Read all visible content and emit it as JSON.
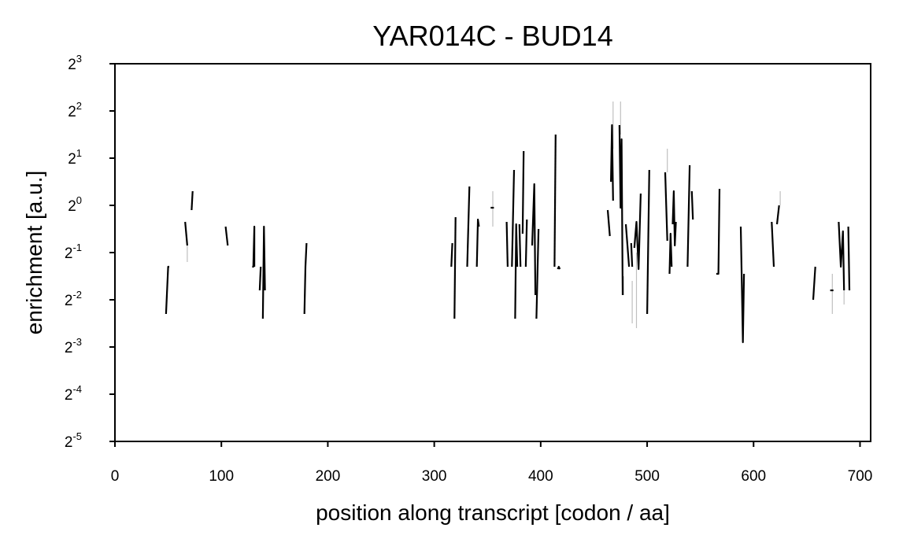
{
  "chart_data": {
    "type": "line",
    "title": "YAR014C - BUD14",
    "xlabel": "position along transcript [codon / aa]",
    "ylabel": "enrichment [a.u.]",
    "xlim": [
      0,
      710
    ],
    "ylim_log2": [
      -5,
      3
    ],
    "y_scale": "log2",
    "x_ticks": [
      {
        "value": 0,
        "label": "0"
      },
      {
        "value": 100,
        "label": "100"
      },
      {
        "value": 200,
        "label": "200"
      },
      {
        "value": 300,
        "label": "300"
      },
      {
        "value": 400,
        "label": "400"
      },
      {
        "value": 500,
        "label": "500"
      },
      {
        "value": 600,
        "label": "600"
      },
      {
        "value": 700,
        "label": "700"
      }
    ],
    "y_ticks": [
      {
        "exp": 3,
        "base": "2",
        "sup": "3"
      },
      {
        "exp": 2,
        "base": "2",
        "sup": "2"
      },
      {
        "exp": 1,
        "base": "2",
        "sup": "1"
      },
      {
        "exp": 0,
        "base": "2",
        "sup": "0"
      },
      {
        "exp": -1,
        "base": "2",
        "sup": "-1"
      },
      {
        "exp": -2,
        "base": "2",
        "sup": "-2"
      },
      {
        "exp": -3,
        "base": "2",
        "sup": "-3"
      },
      {
        "exp": -4,
        "base": "2",
        "sup": "-4"
      },
      {
        "exp": -5,
        "base": "2",
        "sup": "-5"
      }
    ],
    "grid": false,
    "series": [
      {
        "color": "#000000",
        "segments": [
          [
            [
              48,
              -2.3
            ],
            [
              50,
              -1.3
            ],
            [
              51,
              -1.3
            ]
          ],
          [
            [
              66,
              -0.35
            ],
            [
              68,
              -0.85
            ]
          ],
          [
            [
              72,
              -0.1
            ],
            [
              73,
              0.3
            ]
          ],
          [
            [
              104,
              -0.45
            ],
            [
              106,
              -0.85
            ]
          ],
          [
            [
              129,
              -1.3
            ],
            [
              130,
              -1.3
            ],
            [
              131,
              -0.45
            ],
            [
              131,
              -1.3
            ]
          ],
          [
            [
              136,
              -1.8
            ],
            [
              137,
              -1.3
            ]
          ],
          [
            [
              139,
              -2.4
            ],
            [
              140,
              -0.45
            ],
            [
              141,
              -1.8
            ]
          ],
          [
            [
              178,
              -2.3
            ],
            [
              179,
              -1.3
            ],
            [
              180,
              -0.8
            ]
          ],
          [
            [
              316,
              -1.3
            ],
            [
              317,
              -0.8
            ]
          ],
          [
            [
              319,
              -2.4
            ],
            [
              320,
              -0.25
            ]
          ],
          [
            [
              331,
              -1.3
            ],
            [
              333,
              0.4
            ]
          ],
          [
            [
              340,
              -1.3
            ],
            [
              341,
              -0.3
            ],
            [
              342,
              -0.45
            ]
          ],
          [
            [
              353,
              -0.05
            ],
            [
              356,
              -0.05
            ]
          ],
          [
            [
              368,
              -0.35
            ],
            [
              369,
              -1.3
            ]
          ],
          [
            [
              373,
              -1.3
            ],
            [
              375,
              0.75
            ]
          ],
          [
            [
              376,
              -2.4
            ],
            [
              377,
              -0.4
            ],
            [
              378,
              -1.3
            ]
          ],
          [
            [
              380,
              -0.4
            ],
            [
              381,
              -1.3
            ]
          ],
          [
            [
              383,
              -0.6
            ],
            [
              384,
              1.15
            ]
          ],
          [
            [
              386,
              -1.3
            ],
            [
              387,
              -0.3
            ]
          ],
          [
            [
              392,
              -0.85
            ],
            [
              394,
              0.45
            ],
            [
              395,
              -1.9
            ]
          ],
          [
            [
              396,
              -2.4
            ],
            [
              398,
              -0.5
            ]
          ],
          [
            [
              413,
              -1.3
            ],
            [
              414,
              1.5
            ]
          ],
          [
            [
              416,
              -1.35
            ],
            [
              417,
              -1.3
            ],
            [
              418,
              -1.35
            ]
          ],
          [
            [
              463,
              -0.1
            ],
            [
              465,
              -0.65
            ]
          ],
          [
            [
              466,
              0.5
            ],
            [
              467,
              1.7
            ],
            [
              468,
              0.1
            ]
          ],
          [
            [
              474,
              1.7
            ],
            [
              475,
              -0.05
            ],
            [
              476,
              1.4
            ],
            [
              477,
              -1.9
            ]
          ],
          [
            [
              480,
              -0.4
            ],
            [
              483,
              -1.3
            ]
          ],
          [
            [
              485,
              -0.8
            ],
            [
              486,
              -1.3
            ]
          ],
          [
            [
              488,
              -0.9
            ],
            [
              490,
              -0.35
            ],
            [
              492,
              -1.35
            ],
            [
              494,
              0.25
            ]
          ],
          [
            [
              500,
              -2.3
            ],
            [
              502,
              0.75
            ]
          ],
          [
            [
              517,
              0.7
            ],
            [
              519,
              -0.75
            ]
          ],
          [
            [
              521,
              -1.45
            ],
            [
              522,
              -0.6
            ],
            [
              523,
              -1.3
            ]
          ],
          [
            [
              524,
              -0.4
            ],
            [
              525,
              0.3
            ],
            [
              526,
              -0.85
            ],
            [
              527,
              -0.35
            ]
          ],
          [
            [
              538,
              -1.3
            ],
            [
              540,
              0.85
            ]
          ],
          [
            [
              542,
              0.3
            ],
            [
              543,
              -0.3
            ]
          ],
          [
            [
              565,
              -1.45
            ],
            [
              567,
              -1.45
            ],
            [
              568,
              0.35
            ]
          ],
          [
            [
              588,
              -0.45
            ],
            [
              590,
              -2.9
            ],
            [
              591,
              -1.45
            ]
          ],
          [
            [
              617,
              -0.35
            ],
            [
              619,
              -1.3
            ]
          ],
          [
            [
              622,
              -0.4
            ],
            [
              624,
              0.0
            ]
          ],
          [
            [
              656,
              -2.0
            ],
            [
              658,
              -1.3
            ]
          ],
          [
            [
              672,
              -1.8
            ],
            [
              675,
              -1.8
            ]
          ],
          [
            [
              680,
              -0.35
            ],
            [
              682,
              -1.3
            ],
            [
              684,
              -0.55
            ],
            [
              685,
              -1.8
            ]
          ],
          [
            [
              689,
              -0.45
            ],
            [
              690,
              -1.8
            ]
          ]
        ]
      },
      {
        "color": "#bfbfbf",
        "segments": [
          [
            [
              68,
              -0.85
            ],
            [
              68,
              -1.2
            ]
          ],
          [
            [
              355,
              0.3
            ],
            [
              355,
              -0.45
            ]
          ],
          [
            [
              468,
              2.2
            ],
            [
              468,
              1.2
            ]
          ],
          [
            [
              475,
              2.2
            ],
            [
              475,
              1.5
            ]
          ],
          [
            [
              478,
              -1.9
            ],
            [
              478,
              -1.5
            ]
          ],
          [
            [
              486,
              -1.6
            ],
            [
              486,
              -2.5
            ]
          ],
          [
            [
              490,
              -1.0
            ],
            [
              490,
              -2.6
            ]
          ],
          [
            [
              519,
              1.2
            ],
            [
              519,
              0.7
            ]
          ],
          [
            [
              625,
              0.3
            ],
            [
              625,
              0.0
            ]
          ],
          [
            [
              674,
              -1.45
            ],
            [
              674,
              -2.3
            ]
          ],
          [
            [
              685,
              -1.6
            ],
            [
              685,
              -2.1
            ]
          ]
        ]
      }
    ]
  }
}
